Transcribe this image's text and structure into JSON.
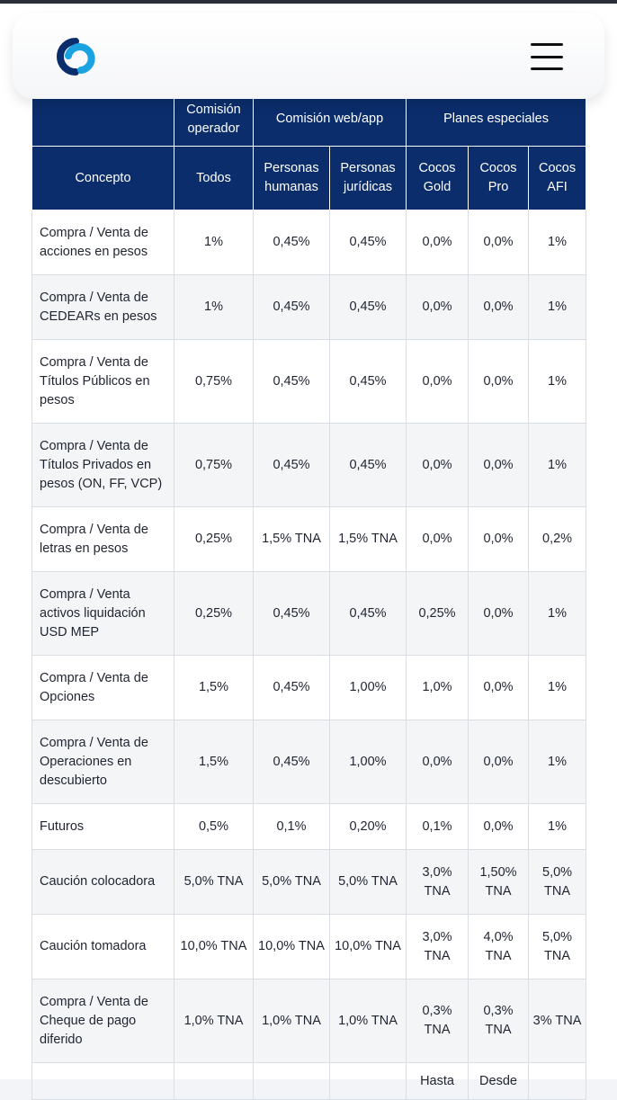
{
  "header": {
    "logo_icon": "cocos-logo-icon",
    "menu_icon": "hamburger-menu-icon",
    "brand_color": "#0b2d6b",
    "logo_accent": "#1aa3e0"
  },
  "table": {
    "group_headers": {
      "operator": "Comisión operador",
      "web_app": "Comisión web/app",
      "special_plans": "Planes especiales"
    },
    "columns": {
      "concept": "Concepto",
      "all": "Todos",
      "individuals": "Personas humanas",
      "companies": "Personas jurídicas",
      "cocos_gold": "Cocos Gold",
      "cocos_pro": "Cocos Pro",
      "cocos_afi": "Cocos AFI"
    },
    "rows": [
      {
        "concept": "Compra / Venta de acciones en pesos",
        "all": "1%",
        "individuals": "0,45%",
        "companies": "0,45%",
        "gold": "0,0%",
        "pro": "0,0%",
        "afi": "1%"
      },
      {
        "concept": "Compra / Venta de CEDEARs en pesos",
        "all": "1%",
        "individuals": "0,45%",
        "companies": "0,45%",
        "gold": "0,0%",
        "pro": "0,0%",
        "afi": "1%"
      },
      {
        "concept": "Compra / Venta de Títulos Públicos en pesos",
        "all": "0,75%",
        "individuals": "0,45%",
        "companies": "0,45%",
        "gold": "0,0%",
        "pro": "0,0%",
        "afi": "1%"
      },
      {
        "concept": "Compra / Venta de Títulos Privados en pesos (ON, FF, VCP)",
        "all": "0,75%",
        "individuals": "0,45%",
        "companies": "0,45%",
        "gold": "0,0%",
        "pro": "0,0%",
        "afi": "1%"
      },
      {
        "concept": "Compra / Venta de letras en pesos",
        "all": "0,25%",
        "individuals": "1,5% TNA",
        "companies": "1,5% TNA",
        "gold": "0,0%",
        "pro": "0,0%",
        "afi": "0,2%"
      },
      {
        "concept": "Compra / Venta activos liquidación USD MEP",
        "all": "0,25%",
        "individuals": "0,45%",
        "companies": "0,45%",
        "gold": "0,25%",
        "pro": "0,0%",
        "afi": "1%"
      },
      {
        "concept": "Compra / Venta de Opciones",
        "all": "1,5%",
        "individuals": "0,45%",
        "companies": "1,00%",
        "gold": "1,0%",
        "pro": "0,0%",
        "afi": "1%"
      },
      {
        "concept": "Compra / Venta de Operaciones en descubierto",
        "all": "1,5%",
        "individuals": "0,45%",
        "companies": "1,00%",
        "gold": "0,0%",
        "pro": "0,0%",
        "afi": "1%"
      },
      {
        "concept": "Futuros",
        "all": "0,5%",
        "individuals": "0,1%",
        "companies": "0,20%",
        "gold": "0,1%",
        "pro": "0,0%",
        "afi": "1%"
      },
      {
        "concept": "Caución colocadora",
        "all": "5,0% TNA",
        "individuals": "5,0% TNA",
        "companies": "5,0% TNA",
        "gold": "3,0% TNA",
        "pro": "1,50% TNA",
        "afi": "5,0% TNA"
      },
      {
        "concept": "Caución tomadora",
        "all": "10,0% TNA",
        "individuals": "10,0% TNA",
        "companies": "10,0% TNA",
        "gold": "3,0% TNA",
        "pro": "4,0% TNA",
        "afi": "5,0% TNA"
      },
      {
        "concept": "Compra / Venta de Cheque de pago diferido",
        "all": "1,0% TNA",
        "individuals": "1,0% TNA",
        "companies": "1,0% TNA",
        "gold": "0,3% TNA",
        "pro": "0,3% TNA",
        "afi": "3% TNA"
      },
      {
        "concept": "",
        "all": "",
        "individuals": "",
        "companies": "",
        "gold": "Hasta",
        "pro": "Desde",
        "afi": ""
      }
    ]
  }
}
